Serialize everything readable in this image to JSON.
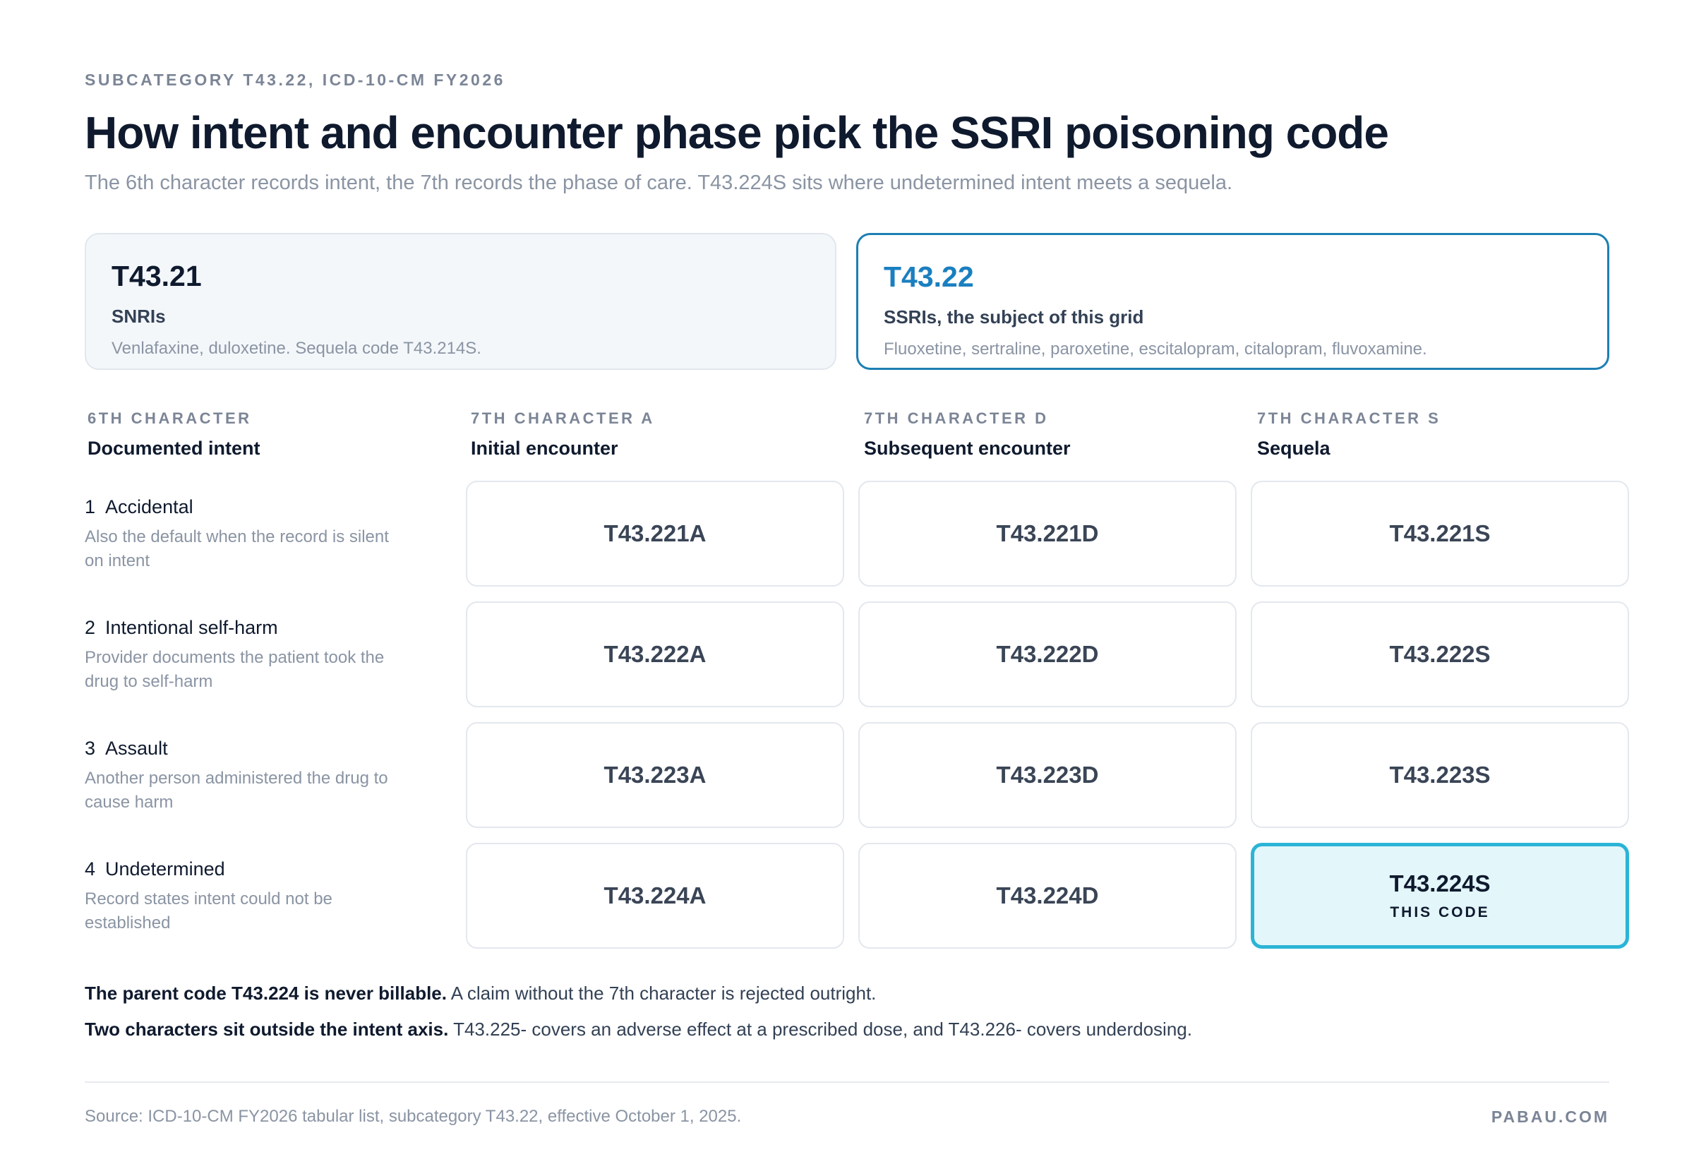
{
  "header": {
    "eyebrow": "SUBCATEGORY T43.22, ICD-10-CM FY2026",
    "title": "How intent and encounter phase pick the SSRI poisoning code",
    "subtitle": "The 6th character records intent, the 7th records the phase of care. T43.224S sits where undetermined intent meets a sequela."
  },
  "cards": [
    {
      "code": "T43.21",
      "name": "SNRIs",
      "desc": "Venlafaxine, duloxetine. Sequela code T43.214S."
    },
    {
      "code": "T43.22",
      "name": "SSRIs, the subject of this grid",
      "desc": "Fluoxetine, sertraline, paroxetine, escitalopram, citalopram, fluvoxamine."
    }
  ],
  "columns": [
    {
      "eyebrow": "6TH CHARACTER",
      "label": "Documented intent"
    },
    {
      "eyebrow": "7TH CHARACTER A",
      "label": "Initial encounter"
    },
    {
      "eyebrow": "7TH CHARACTER D",
      "label": "Subsequent encounter"
    },
    {
      "eyebrow": "7TH CHARACTER S",
      "label": "Sequela"
    }
  ],
  "rows": [
    {
      "num": "1",
      "title": "Accidental",
      "note": "Also the default when the record is silent on intent",
      "codes": [
        "T43.221A",
        "T43.221D",
        "T43.221S"
      ]
    },
    {
      "num": "2",
      "title": "Intentional self-harm",
      "note": "Provider documents the patient took the drug to self-harm",
      "codes": [
        "T43.222A",
        "T43.222D",
        "T43.222S"
      ]
    },
    {
      "num": "3",
      "title": "Assault",
      "note": "Another person administered the drug to cause harm",
      "codes": [
        "T43.223A",
        "T43.223D",
        "T43.223S"
      ]
    },
    {
      "num": "4",
      "title": "Undetermined",
      "note": "Record states intent could not be established",
      "codes": [
        "T43.224A",
        "T43.224D",
        "T43.224S"
      ]
    }
  ],
  "highlight_tag": "THIS CODE",
  "notes": [
    {
      "bold": "The parent code T43.224 is never billable.",
      "text": " A claim without the 7th character is rejected outright."
    },
    {
      "bold": "Two characters sit outside the intent axis.",
      "text": " T43.225- covers an adverse effect at a prescribed dose, and T43.226- covers underdosing."
    }
  ],
  "footer": {
    "source": "Source: ICD-10-CM FY2026 tabular list, subcategory T43.22, effective October 1, 2025.",
    "brand": "PABAU.COM"
  },
  "colors": {
    "subject_border": "#1d7fb3",
    "highlight_fill": "#e3f6fa",
    "highlight_border": "#2bb4d6"
  }
}
